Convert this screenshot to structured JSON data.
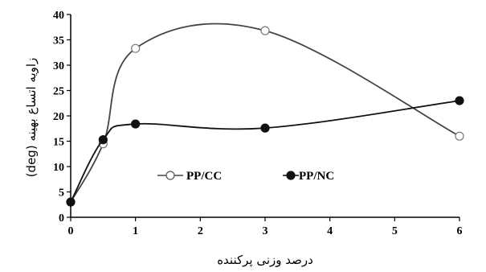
{
  "chart_data": {
    "type": "line",
    "title": "",
    "xlabel": "درصد وزنی پرکننده",
    "ylabel": "زاویه اتساع بهینه (deg)",
    "xticks": [
      0,
      1,
      2,
      3,
      4,
      5,
      6
    ],
    "yticks": [
      0,
      5,
      10,
      15,
      20,
      25,
      30,
      35,
      40
    ],
    "xlim": [
      0,
      6
    ],
    "ylim": [
      0,
      40
    ],
    "grid": false,
    "legend": "inside-middle",
    "series": [
      {
        "name": "PP/CC",
        "marker": "open-circle",
        "color": "#444444",
        "x": [
          0,
          0.5,
          1,
          3,
          6
        ],
        "y": [
          3,
          14.5,
          33.3,
          36.8,
          16
        ]
      },
      {
        "name": "PP/NC",
        "marker": "filled-circle",
        "color": "#111111",
        "x": [
          0,
          0.5,
          1,
          3,
          6
        ],
        "y": [
          3,
          15.3,
          18.4,
          17.6,
          23
        ]
      }
    ]
  }
}
